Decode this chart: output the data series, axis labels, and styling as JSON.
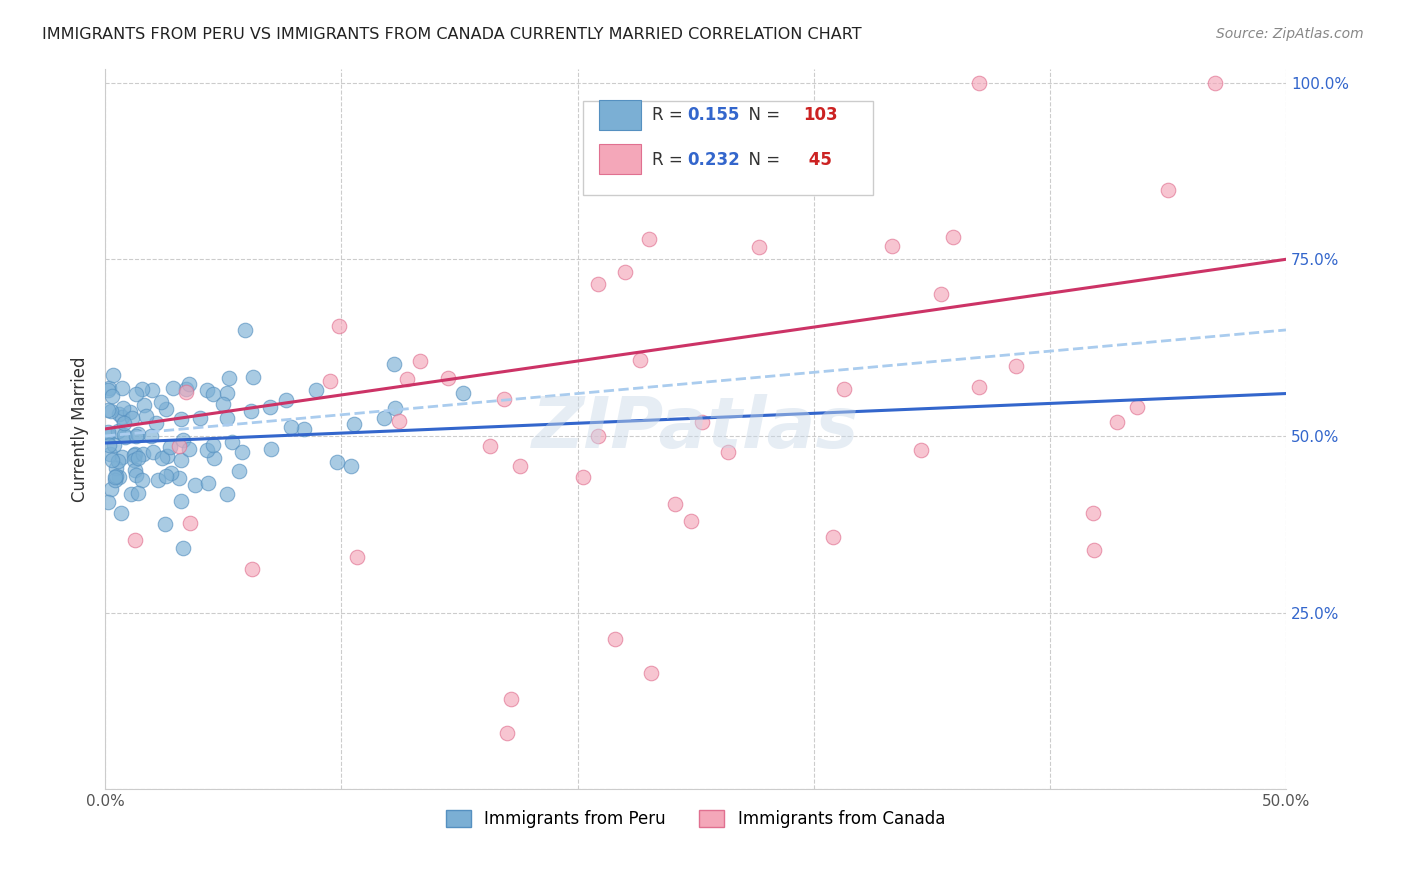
{
  "title": "IMMIGRANTS FROM PERU VS IMMIGRANTS FROM CANADA CURRENTLY MARRIED CORRELATION CHART",
  "source": "Source: ZipAtlas.com",
  "ylabel": "Currently Married",
  "xlim": [
    0.0,
    0.5
  ],
  "ylim": [
    0.0,
    1.02
  ],
  "blue_color": "#7bafd4",
  "pink_color": "#f4a7b9",
  "blue_line_color": "#3366cc",
  "pink_line_color": "#cc3366",
  "dashed_line_color": "#aaccee",
  "R_blue": 0.155,
  "N_blue": 103,
  "R_pink": 0.232,
  "N_pink": 45,
  "legend_label_blue": "Immigrants from Peru",
  "legend_label_pink": "Immigrants from Canada",
  "watermark": "ZIPatlas",
  "blue_trend_y": [
    0.49,
    0.56
  ],
  "pink_trend_y": [
    0.51,
    0.75
  ],
  "dashed_trend_y": [
    0.5,
    0.65
  ]
}
